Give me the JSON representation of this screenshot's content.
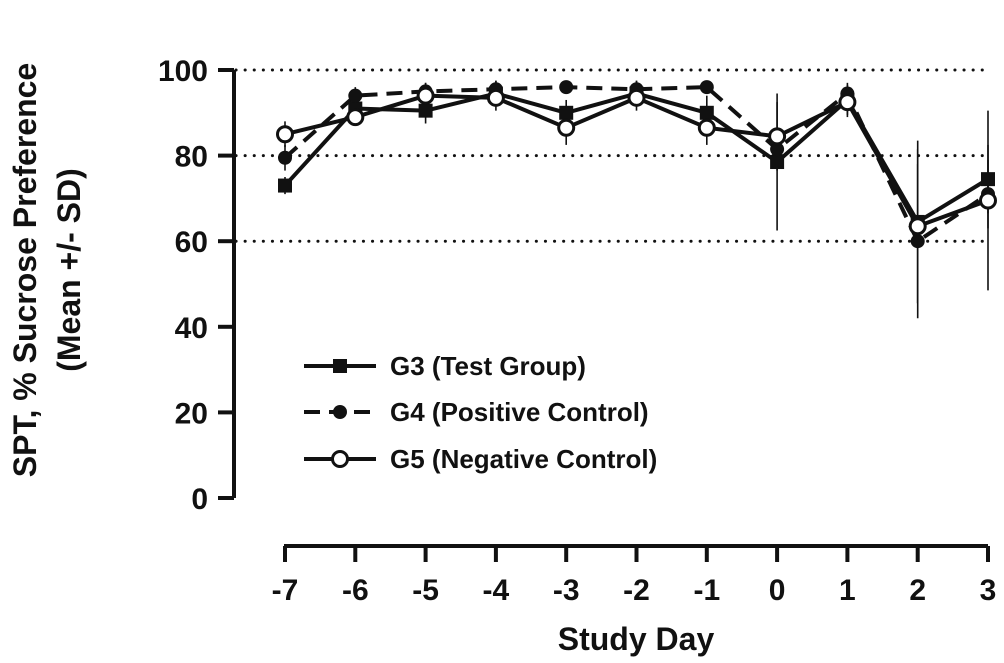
{
  "chart_data": {
    "type": "line",
    "xlabel": "Study Day",
    "ylabel_line1": "SPT, % Sucrose Preference",
    "ylabel_line2": "(Mean +/- SD)",
    "x": [
      -7,
      -6,
      -5,
      -4,
      -3,
      -2,
      -1,
      0,
      1,
      2,
      3
    ],
    "x_tick_labels": [
      "-7",
      "-6",
      "-5",
      "-4",
      "-3",
      "-2",
      "-1",
      "0",
      "1",
      "2",
      "3"
    ],
    "y_ticks": [
      0,
      20,
      40,
      60,
      80,
      100
    ],
    "y_tick_labels": [
      "0",
      "20",
      "40",
      "60",
      "80",
      "100"
    ],
    "ylim": [
      0,
      100
    ],
    "reference_lines": [
      60,
      80,
      100
    ],
    "legend_position": "center-left",
    "series": [
      {
        "name": "G3 (Test Group)",
        "marker": "square-filled",
        "line_style": "solid",
        "color": "#111111",
        "values": [
          73,
          91,
          90.5,
          94.5,
          90,
          94.5,
          90,
          78.5,
          93,
          64.5,
          74.5
        ],
        "sd": [
          2,
          2,
          3,
          3,
          3,
          3,
          4,
          16,
          4,
          19,
          8
        ]
      },
      {
        "name": "G4 (Positive Control)",
        "marker": "circle-filled",
        "line_style": "dashed",
        "color": "#111111",
        "values": [
          79.5,
          94,
          95,
          95.5,
          96,
          95.5,
          96,
          81.5,
          94.5,
          60,
          71
        ],
        "sd": [
          3,
          2,
          2,
          2,
          1,
          2,
          1,
          4,
          2,
          18,
          8
        ]
      },
      {
        "name": "G5 (Negative Control)",
        "marker": "circle-open",
        "line_style": "solid",
        "color": "#111111",
        "values": [
          85,
          89,
          94,
          93.5,
          86.5,
          93.5,
          86.5,
          84.5,
          92.5,
          63.5,
          69.5
        ],
        "sd": [
          3,
          2,
          3,
          3,
          4,
          3,
          4,
          8,
          3,
          18,
          21
        ]
      }
    ]
  }
}
